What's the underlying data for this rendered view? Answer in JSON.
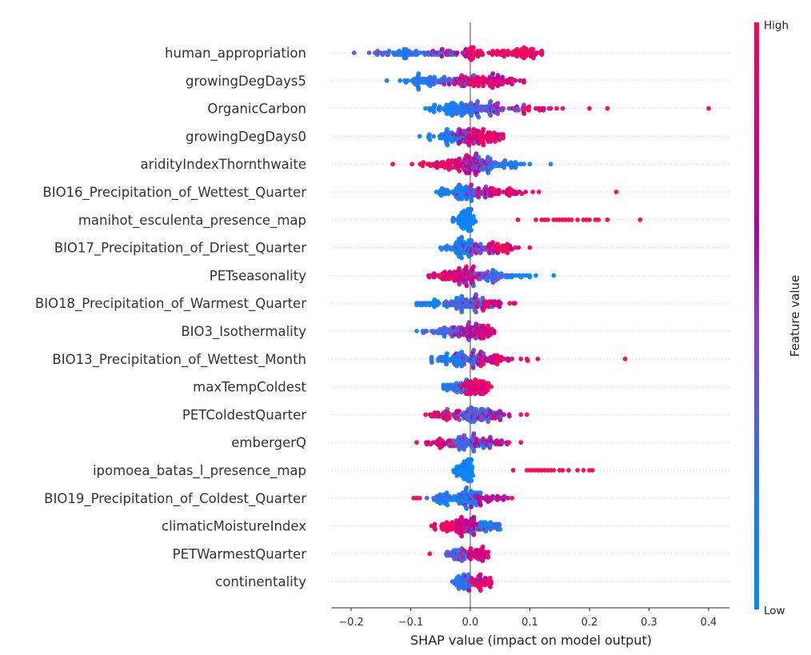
{
  "chart_data": {
    "type": "scatter",
    "subtype": "shap-beeswarm-summary",
    "title": "",
    "xlabel": "SHAP value (impact on model output)",
    "ylabel": "",
    "xlim": [
      -0.23,
      0.435
    ],
    "xticks": [
      -0.2,
      -0.1,
      0.0,
      0.1,
      0.2,
      0.3,
      0.4
    ],
    "xtick_labels": [
      "−0.2",
      "−0.1",
      "0.0",
      "0.1",
      "0.2",
      "0.3",
      "0.4"
    ],
    "zero_line": 0.0,
    "grid": "dotted row guides",
    "colorbar": {
      "title": "Feature value",
      "high_label": "High",
      "low_label": "Low",
      "high_color": "#ff0052",
      "mid_color": "#b000a0",
      "low_color": "#008bfb",
      "placement": "right"
    },
    "features": [
      {
        "name": "human_appropriation",
        "min": -0.195,
        "max": 0.12,
        "clusters": [
          {
            "center": -0.1,
            "spread": 0.035,
            "count": 60,
            "color": 0.2
          },
          {
            "center": -0.03,
            "spread": 0.03,
            "count": 30,
            "color": 0.6
          },
          {
            "center": 0.005,
            "spread": 0.01,
            "count": 25,
            "color": 0.95
          },
          {
            "center": 0.08,
            "spread": 0.025,
            "count": 70,
            "color": 0.95
          }
        ],
        "outliers": [
          {
            "x": -0.195,
            "color": 0.35
          },
          {
            "x": -0.155,
            "color": 0.35
          },
          {
            "x": -0.145,
            "color": 0.3
          }
        ]
      },
      {
        "name": "growingDegDays5",
        "min": -0.14,
        "max": 0.09,
        "clusters": [
          {
            "center": -0.07,
            "spread": 0.022,
            "count": 60,
            "color": 0.15
          },
          {
            "center": -0.02,
            "spread": 0.015,
            "count": 25,
            "color": 0.55
          },
          {
            "center": 0.01,
            "spread": 0.015,
            "count": 40,
            "color": 0.9
          },
          {
            "center": 0.05,
            "spread": 0.02,
            "count": 55,
            "color": 0.8
          }
        ],
        "outliers": [
          {
            "x": -0.14,
            "color": 0.1
          },
          {
            "x": -0.11,
            "color": 0.1
          },
          {
            "x": -0.105,
            "color": 0.15
          }
        ]
      },
      {
        "name": "OrganicCarbon",
        "min": -0.075,
        "max": 0.4,
        "clusters": [
          {
            "center": -0.025,
            "spread": 0.02,
            "count": 80,
            "color": 0.1
          },
          {
            "center": 0.01,
            "spread": 0.02,
            "count": 40,
            "color": 0.3
          },
          {
            "center": 0.05,
            "spread": 0.025,
            "count": 35,
            "color": 0.55
          },
          {
            "center": 0.1,
            "spread": 0.02,
            "count": 14,
            "color": 0.9
          }
        ],
        "outliers": [
          {
            "x": 0.135,
            "color": 1.0
          },
          {
            "x": 0.145,
            "color": 1.0
          },
          {
            "x": 0.155,
            "color": 1.0
          },
          {
            "x": 0.2,
            "color": 1.0
          },
          {
            "x": 0.23,
            "color": 1.0
          },
          {
            "x": 0.4,
            "color": 1.0
          }
        ]
      },
      {
        "name": "growingDegDays0",
        "min": -0.085,
        "max": 0.055,
        "clusters": [
          {
            "center": -0.035,
            "spread": 0.018,
            "count": 55,
            "color": 0.15
          },
          {
            "center": -0.01,
            "spread": 0.01,
            "count": 25,
            "color": 0.6
          },
          {
            "center": 0.015,
            "spread": 0.015,
            "count": 55,
            "color": 0.9
          },
          {
            "center": 0.04,
            "spread": 0.01,
            "count": 25,
            "color": 0.85
          }
        ],
        "outliers": [
          {
            "x": -0.085,
            "color": 0.1
          },
          {
            "x": -0.07,
            "color": 0.1
          }
        ]
      },
      {
        "name": "aridityIndexThornthwaite",
        "min": -0.13,
        "max": 0.135,
        "clusters": [
          {
            "center": -0.04,
            "spread": 0.025,
            "count": 60,
            "color": 0.9
          },
          {
            "center": 0.0,
            "spread": 0.015,
            "count": 50,
            "color": 0.6
          },
          {
            "center": 0.025,
            "spread": 0.02,
            "count": 40,
            "color": 0.35
          },
          {
            "center": 0.06,
            "spread": 0.02,
            "count": 25,
            "color": 0.1
          }
        ],
        "outliers": [
          {
            "x": -0.13,
            "color": 1.0
          },
          {
            "x": -0.08,
            "color": 0.95
          },
          {
            "x": 0.09,
            "color": 0.05
          },
          {
            "x": 0.1,
            "color": 0.05
          },
          {
            "x": 0.135,
            "color": 0.05
          }
        ]
      },
      {
        "name": "BIO16_Precipitation_of_Wettest_Quarter",
        "min": -0.07,
        "max": 0.245,
        "clusters": [
          {
            "center": -0.025,
            "spread": 0.02,
            "count": 60,
            "color": 0.1
          },
          {
            "center": 0.01,
            "spread": 0.015,
            "count": 30,
            "color": 0.5
          },
          {
            "center": 0.05,
            "spread": 0.025,
            "count": 45,
            "color": 0.85
          }
        ],
        "outliers": [
          {
            "x": 0.105,
            "color": 1.0
          },
          {
            "x": 0.115,
            "color": 1.0
          },
          {
            "x": 0.245,
            "color": 1.0
          }
        ]
      },
      {
        "name": "manihot_esculenta_presence_map",
        "min": -0.03,
        "max": 0.285,
        "clusters": [
          {
            "center": -0.012,
            "spread": 0.009,
            "count": 55,
            "color": 0.05
          },
          {
            "center": -0.001,
            "spread": 0.002,
            "count": 40,
            "color": 0.05
          }
        ],
        "outliers": [
          {
            "x": 0.08,
            "color": 1.0
          },
          {
            "x": 0.11,
            "color": 1.0
          },
          {
            "x": 0.12,
            "color": 1.0
          },
          {
            "x": 0.125,
            "color": 1.0
          },
          {
            "x": 0.13,
            "color": 1.0
          },
          {
            "x": 0.14,
            "color": 1.0
          },
          {
            "x": 0.145,
            "color": 1.0
          },
          {
            "x": 0.15,
            "color": 1.0
          },
          {
            "x": 0.155,
            "color": 1.0
          },
          {
            "x": 0.16,
            "color": 1.0
          },
          {
            "x": 0.165,
            "color": 1.0
          },
          {
            "x": 0.17,
            "color": 1.0
          },
          {
            "x": 0.18,
            "color": 1.0
          },
          {
            "x": 0.19,
            "color": 1.0
          },
          {
            "x": 0.195,
            "color": 1.0
          },
          {
            "x": 0.2,
            "color": 1.0
          },
          {
            "x": 0.21,
            "color": 1.0
          },
          {
            "x": 0.215,
            "color": 1.0
          },
          {
            "x": 0.23,
            "color": 1.0
          },
          {
            "x": 0.285,
            "color": 1.0
          }
        ]
      },
      {
        "name": "BIO17_Precipitation_of_Driest_Quarter",
        "min": -0.05,
        "max": 0.1,
        "clusters": [
          {
            "center": -0.015,
            "spread": 0.015,
            "count": 65,
            "color": 0.1
          },
          {
            "center": 0.015,
            "spread": 0.015,
            "count": 40,
            "color": 0.55
          },
          {
            "center": 0.05,
            "spread": 0.015,
            "count": 35,
            "color": 0.9
          }
        ],
        "outliers": [
          {
            "x": -0.05,
            "color": 0.1
          },
          {
            "x": 0.1,
            "color": 1.0
          }
        ]
      },
      {
        "name": "PETseasonality",
        "min": -0.07,
        "max": 0.14,
        "clusters": [
          {
            "center": -0.03,
            "spread": 0.02,
            "count": 55,
            "color": 0.9
          },
          {
            "center": -0.005,
            "spread": 0.012,
            "count": 50,
            "color": 0.7
          },
          {
            "center": 0.03,
            "spread": 0.02,
            "count": 40,
            "color": 0.3
          },
          {
            "center": 0.07,
            "spread": 0.02,
            "count": 20,
            "color": 0.05
          }
        ],
        "outliers": [
          {
            "x": -0.07,
            "color": 1.0
          },
          {
            "x": 0.11,
            "color": 0.05
          },
          {
            "x": 0.14,
            "color": 0.05
          }
        ]
      },
      {
        "name": "BIO18_Precipitation_of_Warmest_Quarter",
        "min": -0.09,
        "max": 0.075,
        "clusters": [
          {
            "center": -0.06,
            "spread": 0.015,
            "count": 25,
            "color": 0.1
          },
          {
            "center": -0.01,
            "spread": 0.018,
            "count": 70,
            "color": 0.3
          },
          {
            "center": 0.03,
            "spread": 0.018,
            "count": 35,
            "color": 0.8
          }
        ],
        "outliers": [
          {
            "x": -0.09,
            "color": 0.05
          },
          {
            "x": 0.075,
            "color": 1.0
          }
        ]
      },
      {
        "name": "BIO3_Isothermality",
        "min": -0.09,
        "max": 0.04,
        "clusters": [
          {
            "center": -0.04,
            "spread": 0.015,
            "count": 40,
            "color": 0.25
          },
          {
            "center": 0.0,
            "spread": 0.015,
            "count": 60,
            "color": 0.6
          },
          {
            "center": 0.025,
            "spread": 0.01,
            "count": 30,
            "color": 0.8
          }
        ],
        "outliers": [
          {
            "x": -0.09,
            "color": 0.05
          },
          {
            "x": -0.08,
            "color": 0.05
          },
          {
            "x": -0.065,
            "color": 0.1
          }
        ]
      },
      {
        "name": "BIO13_Precipitation_of_Wettest_Month",
        "min": -0.065,
        "max": 0.26,
        "clusters": [
          {
            "center": -0.02,
            "spread": 0.018,
            "count": 65,
            "color": 0.15
          },
          {
            "center": 0.01,
            "spread": 0.015,
            "count": 35,
            "color": 0.5
          },
          {
            "center": 0.045,
            "spread": 0.02,
            "count": 40,
            "color": 0.85
          }
        ],
        "outliers": [
          {
            "x": 0.085,
            "color": 1.0
          },
          {
            "x": 0.095,
            "color": 1.0
          },
          {
            "x": 0.26,
            "color": 1.0
          }
        ]
      },
      {
        "name": "maxTempColdest",
        "min": -0.045,
        "max": 0.035,
        "clusters": [
          {
            "center": -0.025,
            "spread": 0.01,
            "count": 35,
            "color": 0.2
          },
          {
            "center": 0.0,
            "spread": 0.008,
            "count": 40,
            "color": 0.9
          },
          {
            "center": 0.02,
            "spread": 0.008,
            "count": 35,
            "color": 0.85
          }
        ],
        "outliers": []
      },
      {
        "name": "PETColdestQuarter",
        "min": -0.075,
        "max": 0.095,
        "clusters": [
          {
            "center": -0.04,
            "spread": 0.018,
            "count": 35,
            "color": 0.85
          },
          {
            "center": 0.0,
            "spread": 0.018,
            "count": 70,
            "color": 0.3
          },
          {
            "center": 0.04,
            "spread": 0.02,
            "count": 35,
            "color": 0.7
          }
        ],
        "outliers": [
          {
            "x": -0.075,
            "color": 1.0
          },
          {
            "x": 0.085,
            "color": 1.0
          },
          {
            "x": 0.095,
            "color": 1.0
          }
        ]
      },
      {
        "name": "embergerQ",
        "min": -0.09,
        "max": 0.085,
        "clusters": [
          {
            "center": -0.045,
            "spread": 0.015,
            "count": 30,
            "color": 0.85
          },
          {
            "center": -0.005,
            "spread": 0.018,
            "count": 65,
            "color": 0.25
          },
          {
            "center": 0.035,
            "spread": 0.018,
            "count": 35,
            "color": 0.7
          }
        ],
        "outliers": [
          {
            "x": -0.09,
            "color": 1.0
          },
          {
            "x": 0.065,
            "color": 1.0
          },
          {
            "x": 0.085,
            "color": 1.0
          }
        ]
      },
      {
        "name": "ipomoea_batas_l_presence_map",
        "min": -0.03,
        "max": 0.205,
        "clusters": [
          {
            "center": -0.012,
            "spread": 0.008,
            "count": 55,
            "color": 0.05
          },
          {
            "center": -0.001,
            "spread": 0.002,
            "count": 35,
            "color": 0.05
          }
        ],
        "outliers": [
          {
            "x": 0.072,
            "color": 1.0
          },
          {
            "x": 0.095,
            "color": 1.0
          },
          {
            "x": 0.1,
            "color": 1.0
          },
          {
            "x": 0.105,
            "color": 1.0
          },
          {
            "x": 0.11,
            "color": 1.0
          },
          {
            "x": 0.115,
            "color": 1.0
          },
          {
            "x": 0.12,
            "color": 1.0
          },
          {
            "x": 0.125,
            "color": 1.0
          },
          {
            "x": 0.13,
            "color": 1.0
          },
          {
            "x": 0.135,
            "color": 1.0
          },
          {
            "x": 0.14,
            "color": 1.0
          },
          {
            "x": 0.15,
            "color": 1.0
          },
          {
            "x": 0.155,
            "color": 1.0
          },
          {
            "x": 0.165,
            "color": 1.0
          },
          {
            "x": 0.18,
            "color": 1.0
          },
          {
            "x": 0.19,
            "color": 1.0
          },
          {
            "x": 0.2,
            "color": 1.0
          },
          {
            "x": 0.205,
            "color": 1.0
          }
        ]
      },
      {
        "name": "BIO19_Precipitation_of_Coldest_Quarter",
        "min": -0.095,
        "max": 0.07,
        "clusters": [
          {
            "center": -0.05,
            "spread": 0.015,
            "count": 30,
            "color": 0.2
          },
          {
            "center": -0.01,
            "spread": 0.015,
            "count": 65,
            "color": 0.1
          },
          {
            "center": 0.025,
            "spread": 0.018,
            "count": 40,
            "color": 0.7
          }
        ],
        "outliers": [
          {
            "x": -0.095,
            "color": 1.0
          },
          {
            "x": -0.09,
            "color": 1.0
          },
          {
            "x": -0.085,
            "color": 1.0
          },
          {
            "x": 0.055,
            "color": 0.55
          },
          {
            "x": 0.07,
            "color": 1.0
          }
        ]
      },
      {
        "name": "climaticMoistureIndex",
        "min": -0.065,
        "max": 0.05,
        "clusters": [
          {
            "center": -0.035,
            "spread": 0.015,
            "count": 45,
            "color": 0.95
          },
          {
            "center": -0.005,
            "spread": 0.012,
            "count": 55,
            "color": 0.7
          },
          {
            "center": 0.025,
            "spread": 0.015,
            "count": 40,
            "color": 0.15
          }
        ],
        "outliers": [
          {
            "x": -0.065,
            "color": 1.0
          },
          {
            "x": 0.05,
            "color": 0.05
          }
        ]
      },
      {
        "name": "PETWarmestQuarter",
        "min": -0.068,
        "max": 0.03,
        "clusters": [
          {
            "center": -0.02,
            "spread": 0.012,
            "count": 40,
            "color": 0.3
          },
          {
            "center": 0.01,
            "spread": 0.012,
            "count": 50,
            "color": 0.8
          }
        ],
        "outliers": [
          {
            "x": -0.068,
            "color": 1.0
          }
        ]
      },
      {
        "name": "continentality",
        "min": -0.03,
        "max": 0.035,
        "clusters": [
          {
            "center": -0.012,
            "spread": 0.01,
            "count": 50,
            "color": 0.2
          },
          {
            "center": 0.018,
            "spread": 0.01,
            "count": 45,
            "color": 0.85
          }
        ],
        "outliers": []
      }
    ]
  }
}
